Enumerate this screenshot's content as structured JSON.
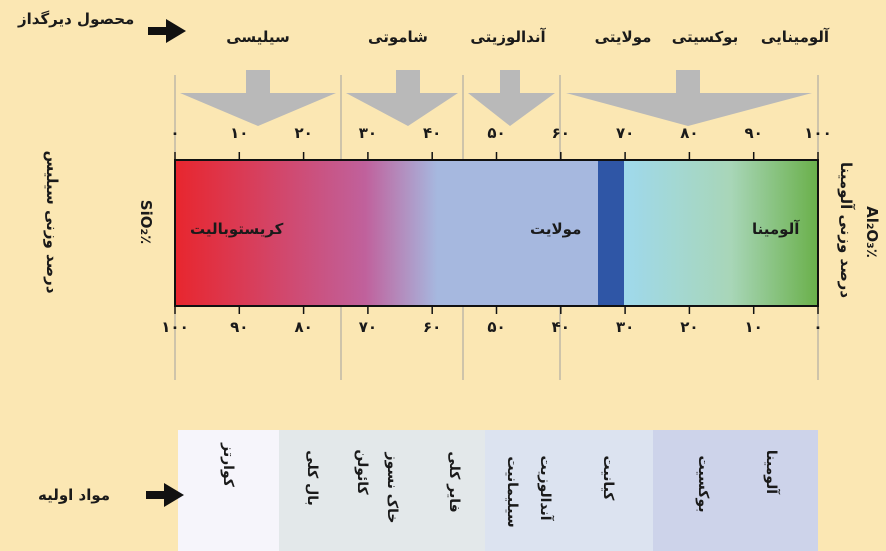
{
  "side": {
    "product_label": "محصول دیرگداز",
    "raw_label": "مواد اولیه",
    "left_axis_label": "درصد وزنی سیلیس",
    "left_axis_unit": "٪SiO₂",
    "right_axis_label": "درصد وزنی آلومینا",
    "right_axis_unit": "٪Al₂O₃"
  },
  "products": [
    {
      "label": "سیلیسی"
    },
    {
      "label": "شاموتی"
    },
    {
      "label": "آندالوزیتی"
    },
    {
      "label": "مولایتی"
    },
    {
      "label": "بوکسیتی"
    },
    {
      "label": "آلومینایی"
    }
  ],
  "top_ticks": [
    "۰",
    "۱۰",
    "۲۰",
    "۳۰",
    "۴۰",
    "۵۰",
    "۶۰",
    "۷۰",
    "۸۰",
    "۹۰",
    "۱۰۰"
  ],
  "bottom_ticks": [
    "۱۰۰",
    "۹۰",
    "۸۰",
    "۷۰",
    "۶۰",
    "۵۰",
    "۴۰",
    "۳۰",
    "۲۰",
    "۱۰",
    "۰"
  ],
  "phases": {
    "cristobalite": "کریستوبالیت",
    "mullite": "مولایت",
    "alumina": "آلومینا"
  },
  "raw_materials": [
    {
      "label": "کوارتز"
    },
    {
      "label": "بال کلی"
    },
    {
      "label": "کائولن"
    },
    {
      "label": "خاک نسوز"
    },
    {
      "label": "فایر کلی"
    },
    {
      "label": "سیلیمانیت"
    },
    {
      "label": "آندالوزیت"
    },
    {
      "label": "کیانیت"
    },
    {
      "label": "بوکسیت"
    },
    {
      "label": "آلومینا"
    }
  ],
  "colors": {
    "background": "#fbe7b3",
    "gradient": [
      "#e8262e",
      "#c0619c",
      "#a6b8df",
      "#9fd9ec",
      "#6ab04a"
    ],
    "mullite_band": "#2f56a6",
    "arrow": "#b9b9b9",
    "raw_bg": [
      "#f6f5fb",
      "#e3e8ea",
      "#dce3f0",
      "#cdd3ea"
    ]
  },
  "icons": [
    "arrow-right-icon"
  ]
}
